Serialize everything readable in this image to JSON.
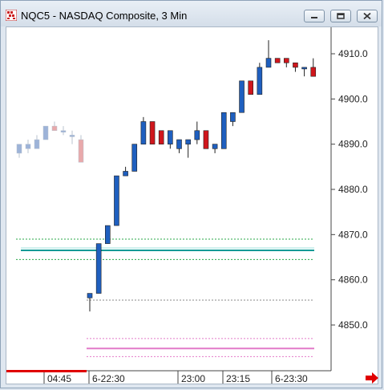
{
  "window": {
    "title": "NQC5 - NASDAQ Composite, 3 Min",
    "minimize_icon": "minimize-icon",
    "restore_icon": "restore-icon",
    "close_icon": "close-icon"
  },
  "colors": {
    "up": "#1f5fbf",
    "down": "#d0161c",
    "green_line": "#2aa84a",
    "teal_line": "#0a9a96",
    "pink_line": "#e27ac8",
    "grey_line": "#888888",
    "red_bar": "#e00000"
  },
  "chart_data": {
    "type": "candlestick",
    "y_ticks": [
      "4850.0",
      "4860.0",
      "4870.0",
      "4880.0",
      "4890.0",
      "4900.0",
      "4910.0"
    ],
    "y_range": [
      4842,
      4917
    ],
    "x_labels": [
      "04:45",
      "6-22:30",
      "23:00",
      "23:15",
      "6-23:30"
    ],
    "candles_faded": [
      {
        "o": 4888,
        "h": 4890,
        "l": 4887,
        "c": 4890
      },
      {
        "o": 4889,
        "h": 4891,
        "l": 4888,
        "c": 4890
      },
      {
        "o": 4889,
        "h": 4892,
        "l": 4889,
        "c": 4891
      },
      {
        "o": 4891,
        "h": 4894,
        "l": 4891,
        "c": 4894
      },
      {
        "o": 4894,
        "h": 4895,
        "l": 4893,
        "c": 4893
      },
      {
        "o": 4893,
        "h": 4894,
        "l": 4892,
        "c": 4893
      },
      {
        "o": 4892,
        "h": 4893,
        "l": 4890,
        "c": 4892
      },
      {
        "o": 4891,
        "h": 4892,
        "l": 4886,
        "c": 4886
      }
    ],
    "candles": [
      {
        "o": 4856,
        "h": 4857,
        "l": 4853,
        "c": 4857
      },
      {
        "o": 4857,
        "h": 4868,
        "l": 4857,
        "c": 4868
      },
      {
        "o": 4868,
        "h": 4872,
        "l": 4868,
        "c": 4872
      },
      {
        "o": 4872,
        "h": 4883,
        "l": 4872,
        "c": 4883
      },
      {
        "o": 4883,
        "h": 4885,
        "l": 4883,
        "c": 4884
      },
      {
        "o": 4884,
        "h": 4890,
        "l": 4884,
        "c": 4890
      },
      {
        "o": 4890,
        "h": 4896,
        "l": 4890,
        "c": 4895
      },
      {
        "o": 4895,
        "h": 4895,
        "l": 4890,
        "c": 4890
      },
      {
        "o": 4893,
        "h": 4893,
        "l": 4890,
        "c": 4890
      },
      {
        "o": 4890,
        "h": 4893,
        "l": 4889,
        "c": 4893
      },
      {
        "o": 4889,
        "h": 4891,
        "l": 4888,
        "c": 4891
      },
      {
        "o": 4890,
        "h": 4891,
        "l": 4887,
        "c": 4891
      },
      {
        "o": 4891,
        "h": 4895,
        "l": 4890,
        "c": 4893
      },
      {
        "o": 4893,
        "h": 4893,
        "l": 4889,
        "c": 4889
      },
      {
        "o": 4889,
        "h": 4890,
        "l": 4888,
        "c": 4890
      },
      {
        "o": 4889,
        "h": 4897,
        "l": 4889,
        "c": 4897
      },
      {
        "o": 4895,
        "h": 4897,
        "l": 4894,
        "c": 4897
      },
      {
        "o": 4897,
        "h": 4904,
        "l": 4897,
        "c": 4904
      },
      {
        "o": 4904,
        "h": 4904,
        "l": 4901,
        "c": 4901
      },
      {
        "o": 4901,
        "h": 4908,
        "l": 4901,
        "c": 4907
      },
      {
        "o": 4907,
        "h": 4913,
        "l": 4907,
        "c": 4909
      },
      {
        "o": 4909,
        "h": 4909,
        "l": 4908,
        "c": 4908
      },
      {
        "o": 4909,
        "h": 4909,
        "l": 4907,
        "c": 4908
      },
      {
        "o": 4908,
        "h": 4908,
        "l": 4906,
        "c": 4907
      },
      {
        "o": 4907,
        "h": 4907,
        "l": 4905,
        "c": 4907
      },
      {
        "o": 4907,
        "h": 4909,
        "l": 4905,
        "c": 4905
      }
    ],
    "levels": [
      {
        "value": 4869,
        "color": "green",
        "style": "dashed"
      },
      {
        "value": 4866.5,
        "color": "teal",
        "style": "solid"
      },
      {
        "value": 4864.5,
        "color": "green",
        "style": "dashed"
      },
      {
        "value": 4855.5,
        "color": "grey",
        "style": "dashed"
      },
      {
        "value": 4847,
        "color": "pink",
        "style": "dashed"
      },
      {
        "value": 4844.8,
        "color": "pink",
        "style": "solid"
      },
      {
        "value": 4843,
        "color": "pink",
        "style": "dashed"
      }
    ]
  }
}
